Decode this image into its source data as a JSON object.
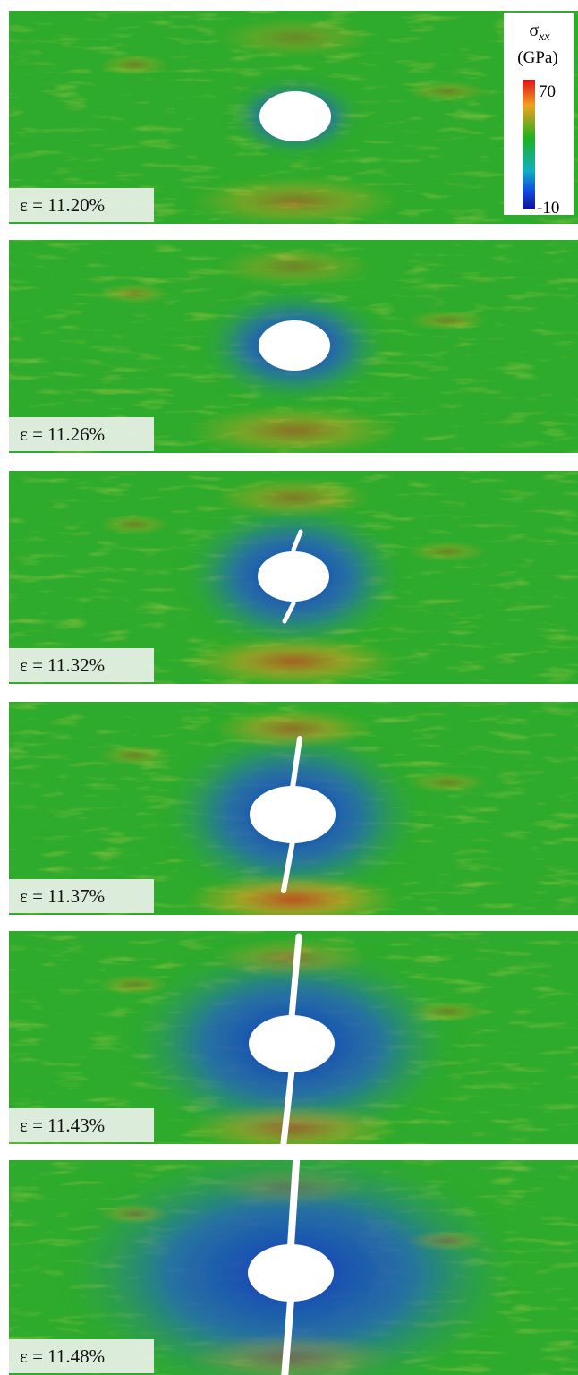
{
  "colorbar": {
    "symbol": "σ",
    "subscript": "xx",
    "unit": "(GPa)",
    "max": "70",
    "min": "-10"
  },
  "panels": [
    {
      "label": "ε = 11.20%"
    },
    {
      "label": "ε = 11.26%"
    },
    {
      "label": "ε = 11.32%"
    },
    {
      "label": "ε = 11.37%"
    },
    {
      "label": "ε = 11.43%"
    },
    {
      "label": "ε = 11.48%"
    }
  ]
}
